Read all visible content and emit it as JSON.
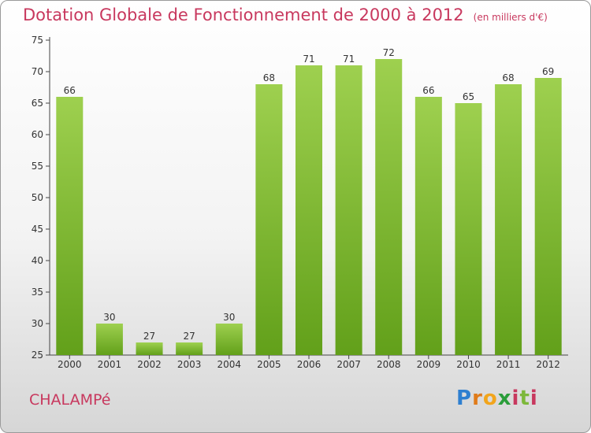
{
  "title": "Dotation Globale de Fonctionnement de 2000 à 2012",
  "unit": "(en milliers d'€)",
  "commune": "CHALAMPé",
  "logo": {
    "text": "Proxiti"
  },
  "colors": {
    "bar_top": "#9ed04f",
    "bar_bottom": "#62a01a",
    "title": "#c8385e",
    "axis": "#444444"
  },
  "chart_data": {
    "type": "bar",
    "title": "Dotation Globale de Fonctionnement de 2000 à 2012",
    "subtitle": "(en milliers d'€)",
    "xlabel": "",
    "ylabel": "",
    "ylim": [
      25,
      75
    ],
    "yticks": [
      25,
      30,
      35,
      40,
      45,
      50,
      55,
      60,
      65,
      70,
      75
    ],
    "grid": false,
    "categories": [
      "2000",
      "2001",
      "2002",
      "2003",
      "2004",
      "2005",
      "2006",
      "2007",
      "2008",
      "2009",
      "2010",
      "2011",
      "2012"
    ],
    "values": [
      66,
      30,
      27,
      27,
      30,
      68,
      71,
      71,
      72,
      66,
      65,
      68,
      69
    ]
  }
}
